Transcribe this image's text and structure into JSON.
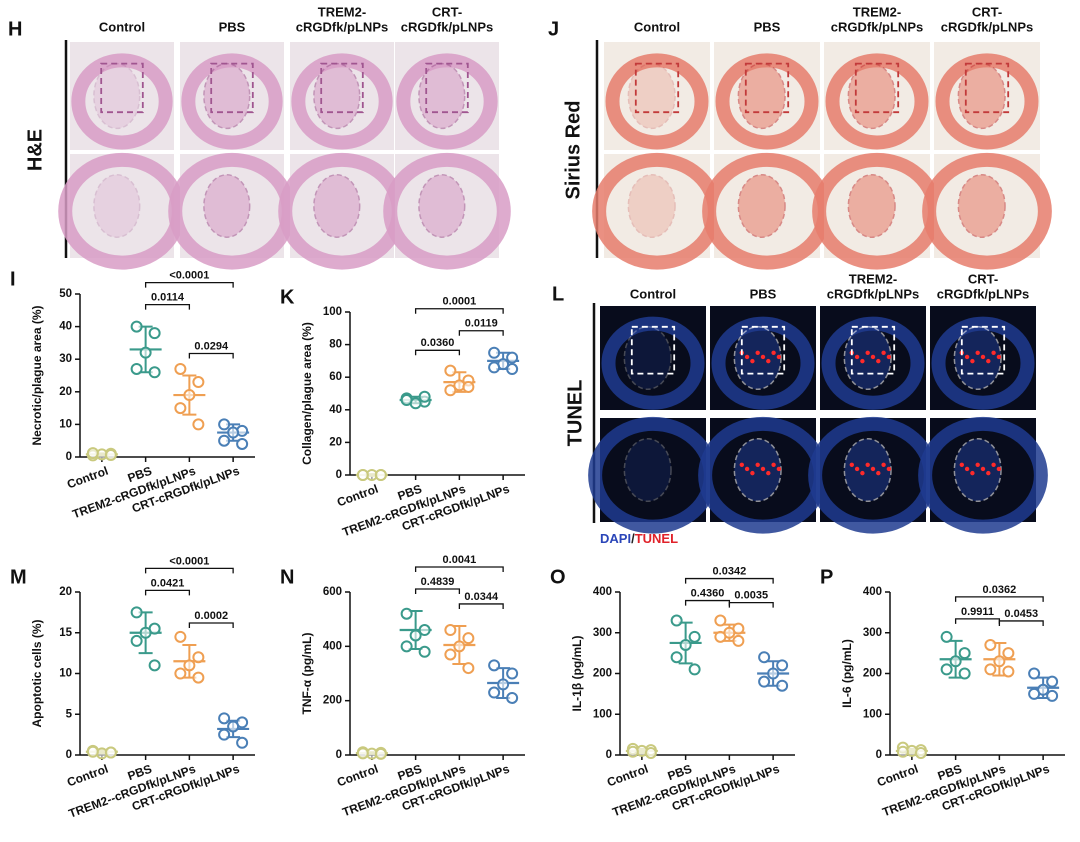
{
  "figure": {
    "panels": [
      {
        "letter": "H",
        "stain": "H&E",
        "columns": [
          [
            "Control"
          ],
          [
            "PBS"
          ],
          [
            "TREM2-",
            "cRGDfk/pLNPs"
          ],
          [
            "CRT-",
            "cRGDfk/pLNPs"
          ]
        ]
      },
      {
        "letter": "J",
        "stain": "Sirius Red",
        "columns": [
          [
            "Control"
          ],
          [
            "PBS"
          ],
          [
            "TREM2-",
            "cRGDfk/pLNPs"
          ],
          [
            "CRT-",
            "cRGDfk/pLNPs"
          ]
        ]
      },
      {
        "letter": "L",
        "stain": "TUNEL",
        "columns": [
          [
            "Control"
          ],
          [
            "PBS"
          ],
          [
            "TREM2-",
            "cRGDfk/pLNPs"
          ],
          [
            "CRT-",
            "cRGDfk/pLNPs"
          ]
        ],
        "legend": [
          "DAPI",
          "/",
          "TUNEL"
        ]
      }
    ]
  },
  "chart_data": [
    {
      "type": "dot",
      "letter": "I",
      "ylabel": "Necrotic/plague area (%)",
      "ylim": [
        0,
        50
      ],
      "yticks": [
        0,
        10,
        20,
        30,
        40,
        50
      ],
      "groups": [
        {
          "name": "Control",
          "color": "#c9c97e",
          "values": [
            0.5,
            1,
            0.8,
            1.2,
            0.6
          ],
          "mean": 0.8,
          "sd": 0.3
        },
        {
          "name": "PBS",
          "color": "#3a9a8b",
          "values": [
            40,
            38,
            32,
            27,
            26
          ],
          "mean": 33,
          "sd": 7
        },
        {
          "name": "TREM2-cRGDfk/pLNPs",
          "color": "#ef9f52",
          "values": [
            27,
            23,
            19,
            15,
            10
          ],
          "mean": 19,
          "sd": 6
        },
        {
          "name": "CRT-cRGDfk/pLNPs",
          "color": "#4a7fb6",
          "values": [
            10,
            8,
            7.5,
            5,
            4
          ],
          "mean": 7.5,
          "sd": 2.5
        }
      ],
      "annotations": [
        {
          "label": "0.0114",
          "between": [
            "PBS",
            "TREM2-cRGDfk/pLNPs"
          ]
        },
        {
          "label": "0.0294",
          "between": [
            "TREM2-cRGDfk/pLNPs",
            "CRT-cRGDfk/pLNPs"
          ]
        },
        {
          "label": "<0.0001",
          "between": [
            "PBS",
            "CRT-cRGDfk/pLNPs"
          ]
        }
      ]
    },
    {
      "type": "dot",
      "letter": "K",
      "ylabel": "Collagen/plague area (%)",
      "ylim": [
        0,
        100
      ],
      "yticks": [
        0,
        20,
        40,
        60,
        80,
        100
      ],
      "groups": [
        {
          "name": "Control",
          "color": "#c9c97e",
          "values": [
            0,
            0,
            0,
            0,
            0
          ],
          "mean": 0,
          "sd": 0.5
        },
        {
          "name": "PBS",
          "color": "#3a9a8b",
          "values": [
            47,
            45,
            44,
            46,
            48
          ],
          "mean": 46,
          "sd": 2
        },
        {
          "name": "TREM2-cRGDfk/pLNPs",
          "color": "#ef9f52",
          "values": [
            64,
            58,
            55,
            52,
            54
          ],
          "mean": 57,
          "sd": 6
        },
        {
          "name": "CRT-cRGDfk/pLNPs",
          "color": "#4a7fb6",
          "values": [
            75,
            72,
            68,
            66,
            65
          ],
          "mean": 70,
          "sd": 5
        }
      ],
      "annotations": [
        {
          "label": "0.0360",
          "between": [
            "PBS",
            "TREM2-cRGDfk/pLNPs"
          ]
        },
        {
          "label": "0.0119",
          "between": [
            "TREM2-cRGDfk/pLNPs",
            "CRT-cRGDfk/pLNPs"
          ]
        },
        {
          "label": "0.0001",
          "between": [
            "PBS",
            "CRT-cRGDfk/pLNPs"
          ]
        }
      ]
    },
    {
      "type": "dot",
      "letter": "M",
      "ylabel": "Apoptotic cells (%)",
      "ylim": [
        0,
        20
      ],
      "yticks": [
        0,
        5,
        10,
        15,
        20
      ],
      "groups": [
        {
          "name": "Control",
          "color": "#c9c97e",
          "values": [
            0.5,
            0.3,
            0.2,
            0.4,
            0.3
          ],
          "mean": 0.4,
          "sd": 0.2
        },
        {
          "name": "PBS",
          "color": "#3a9a8b",
          "values": [
            17.5,
            15.5,
            15,
            14,
            11
          ],
          "mean": 15,
          "sd": 2.5
        },
        {
          "name": "TREM2--cRGDfk/pLNPs",
          "color": "#ef9f52",
          "values": [
            14.5,
            12,
            11,
            10,
            9.5
          ],
          "mean": 11.5,
          "sd": 2
        },
        {
          "name": "CRT-cRGDfk/pLNPs",
          "color": "#4a7fb6",
          "values": [
            4.5,
            4,
            3.5,
            2.5,
            1.5
          ],
          "mean": 3.2,
          "sd": 1
        }
      ],
      "annotations": [
        {
          "label": "0.0421",
          "between": [
            "PBS",
            "TREM2--cRGDfk/pLNPs"
          ]
        },
        {
          "label": "0.0002",
          "between": [
            "TREM2--cRGDfk/pLNPs",
            "CRT-cRGDfk/pLNPs"
          ]
        },
        {
          "label": "<0.0001",
          "between": [
            "PBS",
            "CRT-cRGDfk/pLNPs"
          ]
        }
      ]
    },
    {
      "type": "dot",
      "letter": "N",
      "ylabel": "TNF-α (pg/mL)",
      "ylim": [
        0,
        600
      ],
      "yticks": [
        0,
        200,
        400,
        600
      ],
      "groups": [
        {
          "name": "Control",
          "color": "#c9c97e",
          "values": [
            10,
            8,
            5,
            6,
            4
          ],
          "mean": 7,
          "sd": 3
        },
        {
          "name": "PBS",
          "color": "#3a9a8b",
          "values": [
            520,
            460,
            440,
            400,
            380
          ],
          "mean": 460,
          "sd": 70
        },
        {
          "name": "TREM2-cRGDfk/pLNPs",
          "color": "#ef9f52",
          "values": [
            460,
            430,
            400,
            370,
            320
          ],
          "mean": 405,
          "sd": 70
        },
        {
          "name": "CRT-cRGDfk/pLNPs",
          "color": "#4a7fb6",
          "values": [
            330,
            300,
            260,
            230,
            210
          ],
          "mean": 265,
          "sd": 55
        }
      ],
      "annotations": [
        {
          "label": "0.4839",
          "between": [
            "PBS",
            "TREM2-cRGDfk/pLNPs"
          ]
        },
        {
          "label": "0.0344",
          "between": [
            "TREM2-cRGDfk/pLNPs",
            "CRT-cRGDfk/pLNPs"
          ]
        },
        {
          "label": "0.0041",
          "between": [
            "PBS",
            "CRT-cRGDfk/pLNPs"
          ]
        }
      ]
    },
    {
      "type": "dot",
      "letter": "O",
      "ylabel": "IL-1β (pg/mL)",
      "ylim": [
        0,
        400
      ],
      "yticks": [
        0,
        100,
        200,
        300,
        400
      ],
      "groups": [
        {
          "name": "Control",
          "color": "#c9c97e",
          "values": [
            15,
            12,
            10,
            8,
            5
          ],
          "mean": 10,
          "sd": 5
        },
        {
          "name": "PBS",
          "color": "#3a9a8b",
          "values": [
            330,
            290,
            270,
            240,
            210
          ],
          "mean": 275,
          "sd": 50
        },
        {
          "name": "TREM2-cRGDfk/pLNPs",
          "color": "#ef9f52",
          "values": [
            330,
            310,
            300,
            290,
            280
          ],
          "mean": 300,
          "sd": 20
        },
        {
          "name": "CRT-cRGDfk/pLNPs",
          "color": "#4a7fb6",
          "values": [
            240,
            220,
            200,
            180,
            170
          ],
          "mean": 200,
          "sd": 30
        }
      ],
      "annotations": [
        {
          "label": "0.4360",
          "between": [
            "PBS",
            "TREM2-cRGDfk/pLNPs"
          ]
        },
        {
          "label": "0.0035",
          "between": [
            "TREM2-cRGDfk/pLNPs",
            "CRT-cRGDfk/pLNPs"
          ]
        },
        {
          "label": "0.0342",
          "between": [
            "PBS",
            "CRT-cRGDfk/pLNPs"
          ]
        }
      ]
    },
    {
      "type": "dot",
      "letter": "P",
      "ylabel": "IL-6 (pg/mL)",
      "ylim": [
        0,
        400
      ],
      "yticks": [
        0,
        100,
        200,
        300,
        400
      ],
      "groups": [
        {
          "name": "Control",
          "color": "#c9c97e",
          "values": [
            18,
            12,
            10,
            8,
            5
          ],
          "mean": 10,
          "sd": 5
        },
        {
          "name": "PBS",
          "color": "#3a9a8b",
          "values": [
            290,
            250,
            230,
            210,
            200
          ],
          "mean": 235,
          "sd": 45
        },
        {
          "name": "TREM2-cRGDfk/pLNPs",
          "color": "#ef9f52",
          "values": [
            270,
            250,
            230,
            210,
            205
          ],
          "mean": 235,
          "sd": 40
        },
        {
          "name": "CRT-cRGDfk/pLNPs",
          "color": "#4a7fb6",
          "values": [
            200,
            180,
            160,
            150,
            145
          ],
          "mean": 165,
          "sd": 25
        }
      ],
      "annotations": [
        {
          "label": "0.9911",
          "between": [
            "PBS",
            "TREM2-cRGDfk/pLNPs"
          ]
        },
        {
          "label": "0.0453",
          "between": [
            "TREM2-cRGDfk/pLNPs",
            "CRT-cRGDfk/pLNPs"
          ]
        },
        {
          "label": "0.0362",
          "between": [
            "PBS",
            "CRT-cRGDfk/pLNPs"
          ]
        }
      ]
    }
  ]
}
